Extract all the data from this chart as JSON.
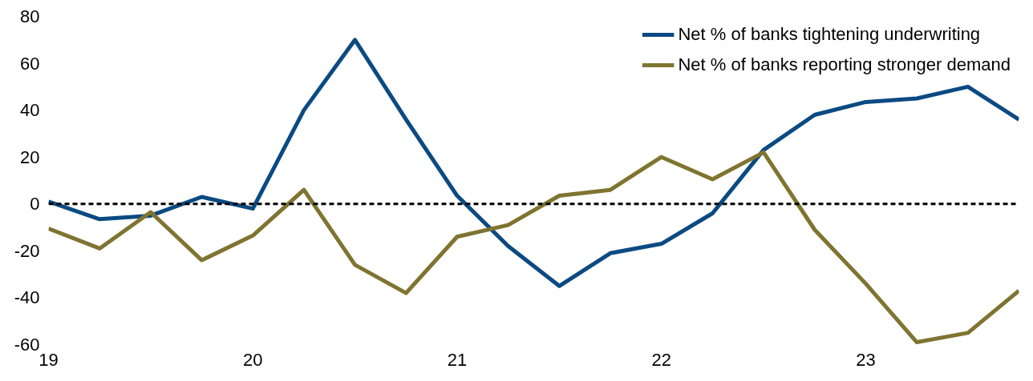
{
  "chart_data": {
    "type": "line",
    "x": [
      19,
      19.25,
      19.5,
      19.75,
      20,
      20.25,
      20.5,
      20.75,
      21,
      21.25,
      21.5,
      21.75,
      22,
      22.25,
      22.5,
      22.75,
      23,
      23.25,
      23.5,
      23.75
    ],
    "series": [
      {
        "name": "Net % of banks tightening underwriting",
        "color": "#0b4a82",
        "values": [
          1,
          -6.5,
          -5,
          3,
          -2,
          40,
          70,
          36,
          3.5,
          -18,
          -35,
          -21,
          -17,
          -4,
          23,
          38,
          43.5,
          45,
          50,
          36
        ]
      },
      {
        "name": "Net % of banks reporting stronger demand",
        "color": "#7f7430",
        "values": [
          -10.5,
          -19,
          -3.5,
          -24,
          -13.5,
          6,
          -26,
          -38,
          -14,
          -9,
          3.5,
          6,
          20,
          10.5,
          22,
          -11,
          -34,
          -59,
          -55,
          -37
        ]
      }
    ],
    "xlim": [
      19,
      23.75
    ],
    "xticks": [
      19,
      20,
      21,
      22,
      23
    ],
    "ylim": [
      -60,
      80
    ],
    "yticks": [
      -60,
      -40,
      -20,
      0,
      20,
      40,
      60,
      80
    ],
    "ref_lines": [
      {
        "axis": "y",
        "value": 0,
        "color": "#000000",
        "line_style": "dashed"
      }
    ],
    "grid": false,
    "legend": "top right"
  }
}
